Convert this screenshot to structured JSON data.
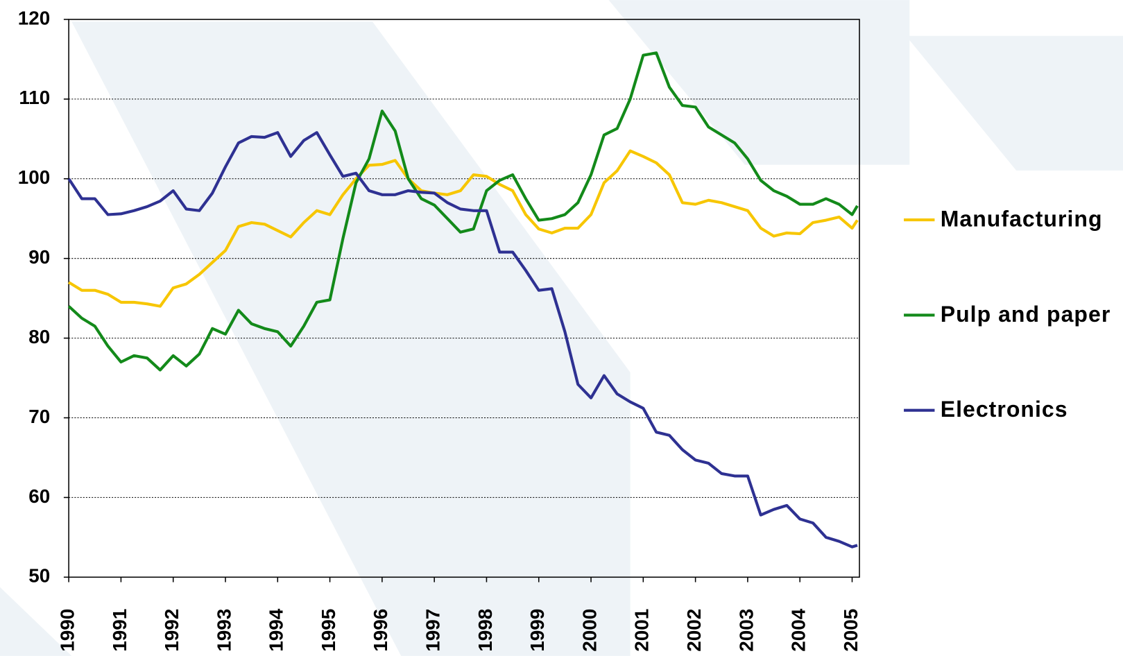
{
  "chart_data": {
    "type": "line",
    "x": [
      1990,
      1990.25,
      1990.5,
      1990.75,
      1991,
      1991.25,
      1991.5,
      1991.75,
      1992,
      1992.25,
      1992.5,
      1992.75,
      1993,
      1993.25,
      1993.5,
      1993.75,
      1994,
      1994.25,
      1994.5,
      1994.75,
      1995,
      1995.25,
      1995.5,
      1995.75,
      1996,
      1996.25,
      1996.5,
      1996.75,
      1997,
      1997.25,
      1997.5,
      1997.75,
      1998,
      1998.25,
      1998.5,
      1998.75,
      1999,
      1999.25,
      1999.5,
      1999.75,
      2000,
      2000.25,
      2000.5,
      2000.75,
      2001,
      2001.25,
      2001.5,
      2001.75,
      2002,
      2002.25,
      2002.5,
      2002.75,
      2003,
      2003.25,
      2003.5,
      2003.75,
      2004,
      2004.25,
      2004.5,
      2004.75,
      2005,
      2005.1
    ],
    "series": [
      {
        "name": "Manufacturing",
        "color": "#f7c600",
        "values": [
          87,
          86,
          86,
          85.5,
          84.5,
          84.5,
          84.3,
          84,
          86.3,
          86.8,
          88,
          89.5,
          91,
          94,
          94.5,
          94.3,
          93.5,
          92.7,
          94.5,
          96,
          95.5,
          98,
          100,
          101.7,
          101.8,
          102.3,
          100,
          98.5,
          98.2,
          98,
          98.5,
          100.5,
          100.3,
          99.3,
          98.5,
          95.5,
          93.7,
          93.2,
          93.8,
          93.8,
          95.5,
          99.5,
          101,
          103.5,
          102.8,
          102,
          100.5,
          97,
          96.8,
          97.3,
          97,
          96.5,
          96,
          93.8,
          92.8,
          93.2,
          93.1,
          94.5,
          94.8,
          95.2,
          93.8,
          94.8
        ]
      },
      {
        "name": "Pulp and paper",
        "color": "#138a1a",
        "values": [
          84,
          82.5,
          81.5,
          79,
          77,
          77.8,
          77.5,
          76,
          77.8,
          76.5,
          78,
          81.2,
          80.5,
          83.5,
          81.8,
          81.2,
          80.8,
          79,
          81.5,
          84.5,
          84.8,
          92.5,
          99.5,
          102.5,
          108.5,
          106,
          100,
          97.5,
          96.7,
          95,
          93.3,
          93.7,
          98.5,
          99.8,
          100.5,
          97.5,
          94.8,
          95,
          95.5,
          97,
          100.5,
          105.5,
          106.3,
          110,
          115.5,
          115.8,
          111.5,
          109.2,
          109,
          106.5,
          105.5,
          104.5,
          102.5,
          99.8,
          98.5,
          97.8,
          96.8,
          96.8,
          97.5,
          96.8,
          95.5,
          96.6
        ]
      },
      {
        "name": "Electronics",
        "color": "#2e3192",
        "values": [
          100,
          97.5,
          97.5,
          95.5,
          95.6,
          96,
          96.5,
          97.2,
          98.5,
          96.2,
          96,
          98.2,
          101.5,
          104.5,
          105.3,
          105.2,
          105.8,
          102.8,
          104.8,
          105.8,
          103,
          100.3,
          100.7,
          98.5,
          98,
          98,
          98.5,
          98.3,
          98.2,
          97,
          96.2,
          96,
          96,
          90.8,
          90.8,
          88.5,
          86,
          86.2,
          80.8,
          74.2,
          72.5,
          75.3,
          73,
          72,
          71.2,
          68.2,
          67.8,
          66,
          64.7,
          64.3,
          63,
          62.7,
          62.7,
          57.8,
          58.5,
          59,
          57.3,
          56.8,
          55,
          54.5,
          53.8,
          54
        ]
      }
    ],
    "xlim": [
      1990,
      2005.14
    ],
    "xticks": [
      1990,
      1991,
      1992,
      1993,
      1994,
      1995,
      1996,
      1997,
      1998,
      1999,
      2000,
      2001,
      2002,
      2003,
      2004,
      2005
    ],
    "ylim": [
      50,
      120
    ],
    "yticks": [
      50,
      60,
      70,
      80,
      90,
      100,
      110,
      120
    ],
    "grid": true
  }
}
